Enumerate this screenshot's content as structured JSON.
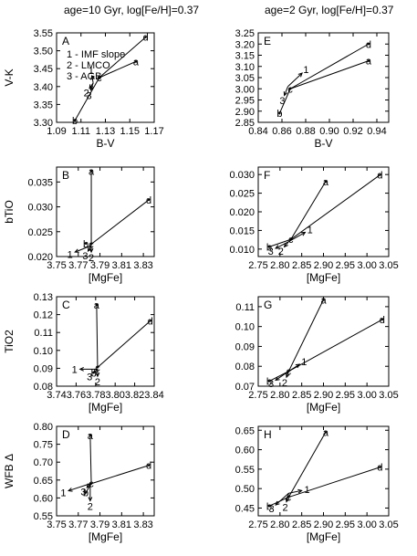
{
  "column_titles": [
    "age=10 Gyr, log[Fe/H]=0.37",
    "age=2 Gyr, log[Fe/H]=0.37"
  ],
  "legend_lines": [
    "1 - IMF slope",
    "2 - LMCO",
    "3 - AGB"
  ],
  "colors": {
    "line": "#000000",
    "background": "#ffffff"
  },
  "chart_data": [
    {
      "type": "line",
      "panel": "A",
      "column": "left",
      "xlabel": "B-V",
      "ylabel": "V-K",
      "xlim": [
        1.09,
        1.17
      ],
      "ylim": [
        3.3,
        3.55
      ],
      "xticks": [
        "1.09",
        "1.11",
        "1.13",
        "1.15",
        "1.17"
      ],
      "yticks": [
        "3.30",
        "3.35",
        "3.40",
        "3.45",
        "3.50",
        "3.55"
      ],
      "points": {
        "a": [
          1.155,
          3.47
        ],
        "b": [
          1.105,
          3.305
        ],
        "c": [
          1.125,
          3.425
        ],
        "d": [
          1.163,
          3.538
        ]
      },
      "segments": [
        [
          "b",
          "c"
        ],
        [
          "c",
          "a"
        ],
        [
          "c",
          "d"
        ]
      ],
      "arrows": [
        {
          "label": "1",
          "from": [
            1.12,
            3.41
          ],
          "to": [
            1.119,
            3.43
          ]
        },
        {
          "label": "2",
          "from": [
            1.12,
            3.41
          ],
          "to": [
            1.117,
            3.395
          ]
        },
        {
          "label": "3",
          "from": [
            1.12,
            3.41
          ],
          "to": [
            1.118,
            3.39
          ]
        }
      ]
    },
    {
      "type": "line",
      "panel": "E",
      "column": "right",
      "xlabel": "B-V",
      "ylabel": "",
      "xlim": [
        0.84,
        0.95
      ],
      "ylim": [
        2.85,
        3.25
      ],
      "xticks": [
        "0.84",
        "0.86",
        "0.88",
        "0.90",
        "0.92",
        "0.94"
      ],
      "yticks": [
        "2.85",
        "2.90",
        "2.95",
        "3.00",
        "3.05",
        "3.10",
        "3.15",
        "3.20",
        "3.25"
      ],
      "points": {
        "a": [
          0.933,
          3.125
        ],
        "b": [
          0.858,
          2.89
        ],
        "c": [
          0.867,
          3.0
        ],
        "d": [
          0.933,
          3.2
        ]
      },
      "segments": [
        [
          "b",
          "c"
        ],
        [
          "c",
          "a"
        ],
        [
          "c",
          "d"
        ]
      ],
      "arrows": [
        {
          "label": "1",
          "from": [
            0.865,
            3.01
          ],
          "to": [
            0.877,
            3.07
          ]
        },
        {
          "label": "3",
          "from": [
            0.865,
            3.01
          ],
          "to": [
            0.862,
            2.97
          ]
        }
      ]
    },
    {
      "type": "line",
      "panel": "B",
      "column": "left",
      "xlabel": "[MgFe]",
      "ylabel": "bTiO",
      "xlim": [
        3.75,
        3.84
      ],
      "ylim": [
        0.02,
        0.038
      ],
      "xticks": [
        "3.75",
        "3.77",
        "3.79",
        "3.81",
        "3.83"
      ],
      "yticks": [
        "0.020",
        "0.025",
        "0.030",
        "0.035"
      ],
      "points": {
        "a": [
          3.782,
          0.0372
        ],
        "b": [
          3.777,
          0.0226
        ],
        "c": [
          3.782,
          0.0225
        ],
        "d": [
          3.835,
          0.0314
        ]
      },
      "segments": [
        [
          "c",
          "a"
        ],
        [
          "c",
          "d"
        ]
      ],
      "arrows": [
        {
          "label": "1",
          "from": [
            3.782,
            0.0222
          ],
          "to": [
            3.767,
            0.0209
          ]
        },
        {
          "label": "3",
          "from": [
            3.782,
            0.0222
          ],
          "to": [
            3.779,
            0.0211
          ]
        },
        {
          "label": "2",
          "from": [
            3.782,
            0.0222
          ],
          "to": [
            3.782,
            0.0209
          ]
        }
      ]
    },
    {
      "type": "line",
      "panel": "F",
      "column": "right",
      "xlabel": "[MgFe]",
      "ylabel": "",
      "xlim": [
        2.75,
        3.05
      ],
      "ylim": [
        0.008,
        0.032
      ],
      "xticks": [
        "2.75",
        "2.80",
        "2.85",
        "2.90",
        "2.95",
        "3.00",
        "3.05"
      ],
      "yticks": [
        "0.010",
        "0.015",
        "0.020",
        "0.025",
        "0.030"
      ],
      "points": {
        "a": [
          2.905,
          0.0281
        ],
        "b": [
          2.775,
          0.0106
        ],
        "c": [
          2.825,
          0.0126
        ],
        "d": [
          3.03,
          0.0299
        ]
      },
      "segments": [
        [
          "b",
          "c"
        ],
        [
          "c",
          "a"
        ],
        [
          "c",
          "d"
        ]
      ],
      "arrows": [
        {
          "label": "1",
          "from": [
            2.82,
            0.012
          ],
          "to": [
            2.858,
            0.0145
          ]
        },
        {
          "label": "2",
          "from": [
            2.82,
            0.012
          ],
          "to": [
            2.81,
            0.0106
          ]
        },
        {
          "label": "3",
          "from": [
            2.82,
            0.012
          ],
          "to": [
            2.79,
            0.0102
          ]
        }
      ]
    },
    {
      "type": "line",
      "panel": "C",
      "column": "left",
      "xlabel": "[MgFe]",
      "ylabel": "TiO2",
      "xlim": [
        3.74,
        3.84
      ],
      "ylim": [
        0.08,
        0.13
      ],
      "xticks": [
        "3.74",
        "3.76",
        "3.78",
        "3.80",
        "3.82",
        "3.84"
      ],
      "yticks": [
        "0.08",
        "0.09",
        "0.10",
        "0.11",
        "0.12",
        "0.13"
      ],
      "points": {
        "a": [
          3.781,
          0.1255
        ],
        "b": [
          3.778,
          0.0875
        ],
        "c": [
          3.782,
          0.0905
        ],
        "d": [
          3.836,
          0.1165
        ]
      },
      "segments": [
        [
          "c",
          "a"
        ],
        [
          "c",
          "d"
        ]
      ],
      "arrows": [
        {
          "label": "1",
          "from": [
            3.782,
            0.0895
          ],
          "to": [
            3.764,
            0.0895
          ]
        },
        {
          "label": "3",
          "from": [
            3.782,
            0.0895
          ],
          "to": [
            3.778,
            0.0875
          ]
        },
        {
          "label": "2",
          "from": [
            3.782,
            0.0895
          ],
          "to": [
            3.782,
            0.0855
          ]
        }
      ]
    },
    {
      "type": "line",
      "panel": "G",
      "column": "right",
      "xlabel": "[MgFe]",
      "ylabel": "",
      "xlim": [
        2.75,
        3.05
      ],
      "ylim": [
        0.07,
        0.115
      ],
      "xticks": [
        "2.75",
        "2.80",
        "2.85",
        "2.90",
        "2.95",
        "3.00",
        "3.05"
      ],
      "yticks": [
        "0.07",
        "0.08",
        "0.09",
        "0.10",
        "0.11"
      ],
      "points": {
        "a": [
          2.9,
          0.1135
        ],
        "b": [
          2.775,
          0.0725
        ],
        "c": [
          2.82,
          0.0775
        ],
        "d": [
          3.035,
          0.1035
        ]
      },
      "segments": [
        [
          "b",
          "c"
        ],
        [
          "c",
          "a"
        ],
        [
          "c",
          "d"
        ]
      ],
      "arrows": [
        {
          "label": "1",
          "from": [
            2.82,
            0.0775
          ],
          "to": [
            2.845,
            0.081
          ]
        },
        {
          "label": "2",
          "from": [
            2.82,
            0.0775
          ],
          "to": [
            2.815,
            0.0745
          ]
        },
        {
          "label": "3",
          "from": [
            2.82,
            0.0775
          ],
          "to": [
            2.79,
            0.073
          ]
        }
      ]
    },
    {
      "type": "line",
      "panel": "D",
      "column": "left",
      "xlabel": "[MgFe]",
      "ylabel": "WFB Δ",
      "xlim": [
        3.75,
        3.84
      ],
      "ylim": [
        0.55,
        0.8
      ],
      "xticks": [
        "3.75",
        "3.77",
        "3.79",
        "3.81",
        "3.83"
      ],
      "yticks": [
        "0.55",
        "0.60",
        "0.65",
        "0.70",
        "0.75",
        "0.80"
      ],
      "points": {
        "a": [
          3.781,
          0.775
        ],
        "b": [
          3.777,
          0.615
        ],
        "c": [
          3.782,
          0.64
        ],
        "d": [
          3.835,
          0.691
        ]
      },
      "segments": [
        [
          "b",
          "c"
        ],
        [
          "c",
          "a"
        ],
        [
          "c",
          "d"
        ]
      ],
      "arrows": [
        {
          "label": "1",
          "from": [
            3.781,
            0.64
          ],
          "to": [
            3.761,
            0.62
          ]
        },
        {
          "label": "3",
          "from": [
            3.781,
            0.64
          ],
          "to": [
            3.778,
            0.629
          ]
        },
        {
          "label": "2",
          "from": [
            3.781,
            0.64
          ],
          "to": [
            3.781,
            0.592
          ]
        }
      ]
    },
    {
      "type": "line",
      "panel": "H",
      "column": "right",
      "xlabel": "[MgFe]",
      "ylabel": "",
      "xlim": [
        2.75,
        3.05
      ],
      "ylim": [
        0.43,
        0.66
      ],
      "xticks": [
        "2.75",
        "2.80",
        "2.85",
        "2.90",
        "2.95",
        "3.00",
        "3.05"
      ],
      "yticks": [
        "0.45",
        "0.50",
        "0.55",
        "0.60",
        "0.65"
      ],
      "points": {
        "a": [
          2.905,
          0.645
        ],
        "b": [
          2.775,
          0.455
        ],
        "c": [
          2.82,
          0.478
        ],
        "d": [
          3.03,
          0.555
        ]
      },
      "segments": [
        [
          "b",
          "c"
        ],
        [
          "c",
          "a"
        ],
        [
          "c",
          "d"
        ]
      ],
      "arrows": [
        {
          "label": "1",
          "from": [
            2.82,
            0.488
          ],
          "to": [
            2.85,
            0.495
          ]
        },
        {
          "label": "2",
          "from": [
            2.82,
            0.488
          ],
          "to": [
            2.815,
            0.466
          ]
        },
        {
          "label": "3",
          "from": [
            2.82,
            0.488
          ],
          "to": [
            2.79,
            0.458
          ]
        }
      ]
    }
  ]
}
